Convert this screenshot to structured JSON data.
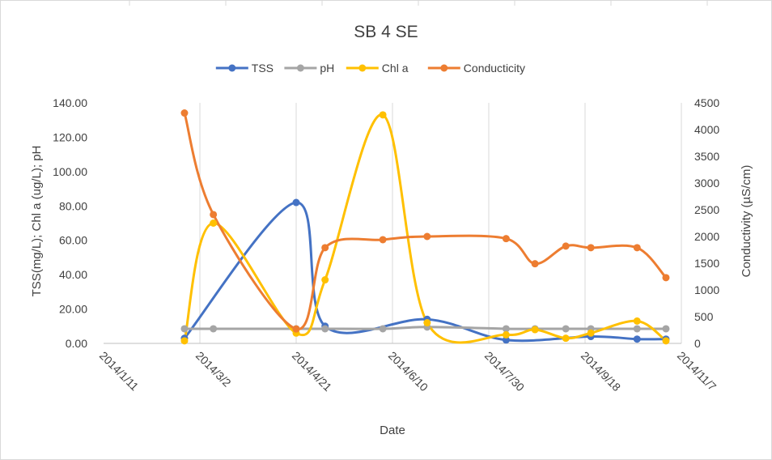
{
  "chart_data": {
    "type": "line",
    "title": "SB 4 SE",
    "xlabel": "Date",
    "ylabel_left": "TSS(mg/L); Chl a (ug/L); pH",
    "ylabel_right": "Conductivity  (µS/cm)",
    "legend_position": "top",
    "grid": "vertical",
    "x_ticks": [
      "2014/1/11",
      "2014/3/2",
      "2014/4/21",
      "2014/6/10",
      "2014/7/30",
      "2014/9/18",
      "2014/11/7"
    ],
    "y_left_ticks": [
      "0.00",
      "20.00",
      "40.00",
      "60.00",
      "80.00",
      "100.00",
      "120.00",
      "140.00"
    ],
    "y_right_ticks": [
      "0",
      "500",
      "1000",
      "1500",
      "2000",
      "2500",
      "3000",
      "3500",
      "4000",
      "4500"
    ],
    "ylim_left": [
      0,
      140
    ],
    "ylim_right": [
      0,
      4500
    ],
    "x_range": [
      "2014-01-11",
      "2014-11-07"
    ],
    "series": [
      {
        "name": "TSS",
        "axis": "left",
        "color": "#4472C4",
        "points": [
          {
            "x": "2014-02-22",
            "y": 3
          },
          {
            "x": "2014-04-21",
            "y": 82
          },
          {
            "x": "2014-05-06",
            "y": 10
          },
          {
            "x": "2014-06-28",
            "y": 14
          },
          {
            "x": "2014-08-08",
            "y": 2
          },
          {
            "x": "2014-09-21",
            "y": 4
          },
          {
            "x": "2014-10-15",
            "y": 2.5
          },
          {
            "x": "2014-10-30",
            "y": 2.5
          }
        ]
      },
      {
        "name": "pH",
        "axis": "left",
        "color": "#A5A5A5",
        "points": [
          {
            "x": "2014-02-22",
            "y": 8.5
          },
          {
            "x": "2014-03-09",
            "y": 8.5
          },
          {
            "x": "2014-04-21",
            "y": 8.5
          },
          {
            "x": "2014-05-06",
            "y": 8.5
          },
          {
            "x": "2014-06-05",
            "y": 8.5
          },
          {
            "x": "2014-06-28",
            "y": 9.5
          },
          {
            "x": "2014-08-08",
            "y": 8.5
          },
          {
            "x": "2014-08-23",
            "y": 8.5
          },
          {
            "x": "2014-09-08",
            "y": 8.5
          },
          {
            "x": "2014-09-21",
            "y": 8.5
          },
          {
            "x": "2014-10-15",
            "y": 8.5
          },
          {
            "x": "2014-10-30",
            "y": 8.5
          }
        ]
      },
      {
        "name": "Chl a",
        "axis": "left",
        "color": "#FFC000",
        "points": [
          {
            "x": "2014-02-22",
            "y": 1.5
          },
          {
            "x": "2014-03-09",
            "y": 70
          },
          {
            "x": "2014-04-21",
            "y": 6
          },
          {
            "x": "2014-05-06",
            "y": 37
          },
          {
            "x": "2014-06-05",
            "y": 133
          },
          {
            "x": "2014-06-28",
            "y": 12
          },
          {
            "x": "2014-08-08",
            "y": 5
          },
          {
            "x": "2014-08-23",
            "y": 8
          },
          {
            "x": "2014-09-08",
            "y": 3
          },
          {
            "x": "2014-09-21",
            "y": 6
          },
          {
            "x": "2014-10-15",
            "y": 13
          },
          {
            "x": "2014-10-30",
            "y": 1.5
          }
        ]
      },
      {
        "name": "Conducticity",
        "axis": "right",
        "color": "#ED7D31",
        "points": [
          {
            "x": "2014-02-22",
            "y": 4310
          },
          {
            "x": "2014-03-09",
            "y": 2410
          },
          {
            "x": "2014-04-21",
            "y": 270
          },
          {
            "x": "2014-05-06",
            "y": 1790
          },
          {
            "x": "2014-06-05",
            "y": 1940
          },
          {
            "x": "2014-06-28",
            "y": 2000
          },
          {
            "x": "2014-08-08",
            "y": 1960
          },
          {
            "x": "2014-08-23",
            "y": 1490
          },
          {
            "x": "2014-09-08",
            "y": 1820
          },
          {
            "x": "2014-09-21",
            "y": 1790
          },
          {
            "x": "2014-10-15",
            "y": 1790
          },
          {
            "x": "2014-10-30",
            "y": 1230
          }
        ]
      }
    ]
  }
}
